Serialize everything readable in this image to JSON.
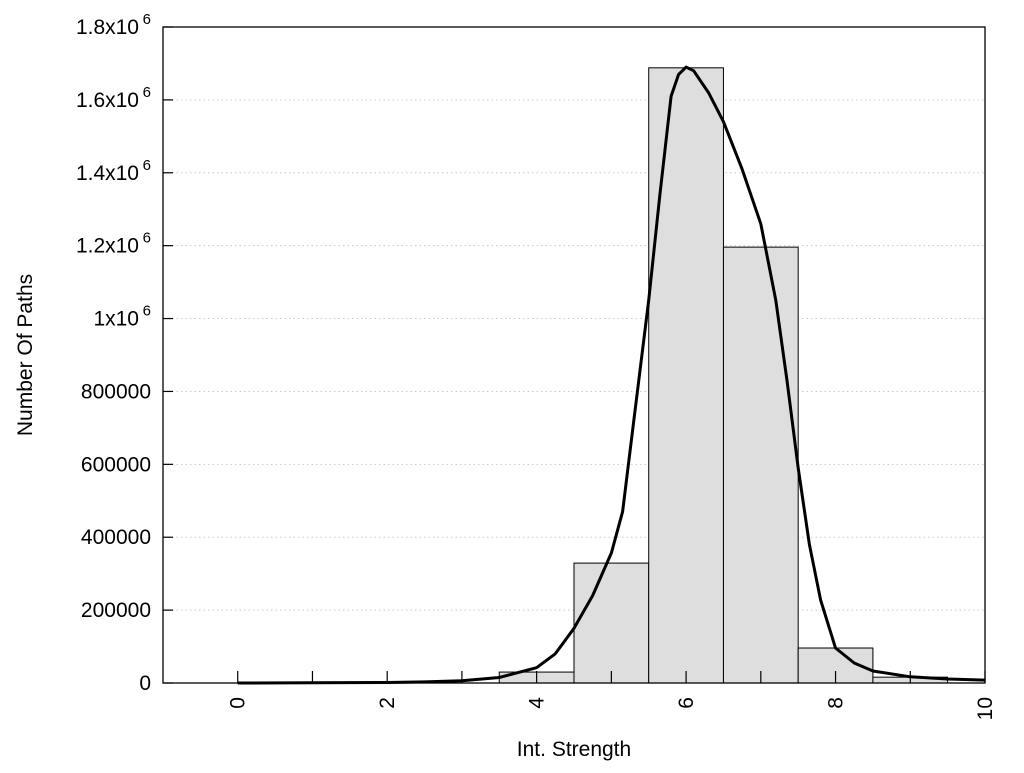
{
  "chart_data": {
    "type": "bar",
    "title": "",
    "xlabel": "Int. Strength",
    "ylabel": "Number Of Paths",
    "xlim": [
      -1,
      10
    ],
    "ylim": [
      0,
      1800000
    ],
    "grid": "horizontal dotted",
    "x_ticks": [
      {
        "value": 0,
        "label": "0"
      },
      {
        "value": 2,
        "label": "2"
      },
      {
        "value": 4,
        "label": "4"
      },
      {
        "value": 6,
        "label": "6"
      },
      {
        "value": 8,
        "label": "8"
      },
      {
        "value": 10,
        "label": "10"
      }
    ],
    "y_ticks": [
      {
        "value": 0,
        "label": "0"
      },
      {
        "value": 200000,
        "label": "200000"
      },
      {
        "value": 400000,
        "label": "400000"
      },
      {
        "value": 600000,
        "label": "600000"
      },
      {
        "value": 800000,
        "label": "800000"
      },
      {
        "value": 1000000,
        "label": "1x10",
        "sup": "6"
      },
      {
        "value": 1200000,
        "label": "1.2x10",
        "sup": "6"
      },
      {
        "value": 1400000,
        "label": "1.4x10",
        "sup": "6"
      },
      {
        "value": 1600000,
        "label": "1.6x10",
        "sup": "6"
      },
      {
        "value": 1800000,
        "label": "1.8x10",
        "sup": "6"
      }
    ],
    "bars": {
      "name": "histogram",
      "bin_width": 1,
      "centers": [
        0,
        1,
        2,
        3,
        4,
        5,
        6,
        7,
        8,
        9
      ],
      "values": [
        0,
        0,
        0,
        0,
        30000,
        329000,
        1688000,
        1196000,
        96000,
        16000
      ]
    },
    "series": [
      {
        "name": "fit curve",
        "type": "line",
        "x": [
          0,
          1,
          2,
          2.5,
          3,
          3.5,
          4,
          4.25,
          4.5,
          4.75,
          5,
          5.15,
          5.3,
          5.5,
          5.65,
          5.8,
          5.9,
          6,
          6.1,
          6.3,
          6.5,
          6.75,
          7,
          7.2,
          7.35,
          7.5,
          7.65,
          7.8,
          8,
          8.25,
          8.5,
          9,
          9.5,
          10
        ],
        "y": [
          0,
          500,
          1500,
          3000,
          6000,
          15000,
          42000,
          80000,
          150000,
          240000,
          357000,
          470000,
          720000,
          1050000,
          1340000,
          1610000,
          1670000,
          1690000,
          1680000,
          1620000,
          1540000,
          1410000,
          1260000,
          1050000,
          830000,
          590000,
          380000,
          228000,
          96000,
          55000,
          33000,
          17000,
          11000,
          8000
        ]
      }
    ],
    "colors": {
      "bar_fill": "#dedede",
      "bar_stroke": "#000000",
      "line": "#000000",
      "grid": "#c8c8c8"
    }
  }
}
